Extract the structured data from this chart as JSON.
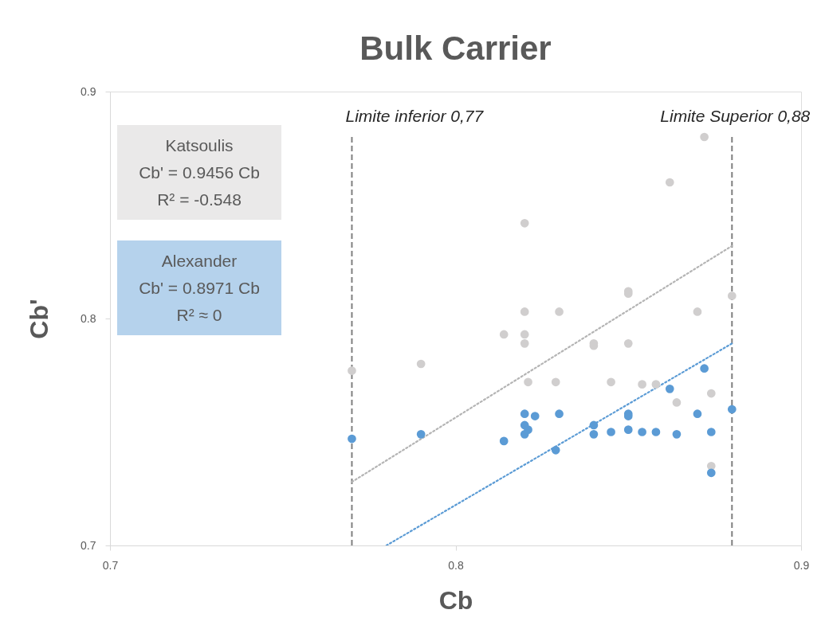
{
  "chart_data": {
    "type": "scatter",
    "title": "Bulk Carrier",
    "xlabel": "Cb",
    "ylabel": "Cb'",
    "xlim": [
      0.7,
      0.9
    ],
    "ylim": [
      0.7,
      0.9
    ],
    "xticks": [
      0.7,
      0.8,
      0.9
    ],
    "yticks": [
      0.7,
      0.8,
      0.9
    ],
    "grid": false,
    "marker": "circle",
    "series": [
      {
        "color": "#d0cece",
        "x": [
          0.77,
          0.79,
          0.814,
          0.82,
          0.82,
          0.82,
          0.82,
          0.821,
          0.829,
          0.83,
          0.84,
          0.84,
          0.845,
          0.85,
          0.85,
          0.85,
          0.854,
          0.858,
          0.862,
          0.864,
          0.87,
          0.872,
          0.874,
          0.874,
          0.88
        ],
        "values": [
          0.777,
          0.78,
          0.793,
          0.842,
          0.803,
          0.793,
          0.789,
          0.772,
          0.772,
          0.803,
          0.789,
          0.788,
          0.772,
          0.812,
          0.811,
          0.789,
          0.771,
          0.771,
          0.86,
          0.763,
          0.803,
          0.88,
          0.767,
          0.735,
          0.81
        ]
      },
      {
        "color": "#5b9bd5",
        "x": [
          0.77,
          0.79,
          0.814,
          0.82,
          0.82,
          0.821,
          0.82,
          0.823,
          0.829,
          0.83,
          0.84,
          0.84,
          0.845,
          0.85,
          0.85,
          0.85,
          0.854,
          0.858,
          0.862,
          0.864,
          0.87,
          0.872,
          0.874,
          0.874,
          0.88
        ],
        "values": [
          0.747,
          0.749,
          0.746,
          0.758,
          0.753,
          0.751,
          0.749,
          0.757,
          0.742,
          0.758,
          0.753,
          0.749,
          0.75,
          0.758,
          0.757,
          0.751,
          0.75,
          0.75,
          0.769,
          0.749,
          0.758,
          0.778,
          0.75,
          0.732,
          0.76
        ]
      },
      {
        "type": "line",
        "color": "#b4b4b4",
        "line_style": "dotted",
        "marker": "none",
        "x": [
          0.77,
          0.88
        ],
        "values": [
          0.728,
          0.832
        ]
      },
      {
        "type": "line",
        "color": "#5b9bd5",
        "line_style": "dotted",
        "marker": "none",
        "x": [
          0.78,
          0.88
        ],
        "values": [
          0.7,
          0.789
        ]
      }
    ],
    "ref_lines": [
      {
        "axis": "x",
        "value": 0.77,
        "label": "Limite inferior 0,77",
        "color": "#7f7f7f",
        "line_style": "dashed"
      },
      {
        "axis": "x",
        "value": 0.88,
        "label": "Limite Superior 0,88",
        "color": "#7f7f7f",
        "line_style": "dashed"
      }
    ],
    "annotations": [
      "Katsoulis\nCb' = 0.9456 Cb\nR² = -0.548",
      "Alexander\nCb' = 0.8971 Cb\nR² ≈ 0"
    ]
  }
}
